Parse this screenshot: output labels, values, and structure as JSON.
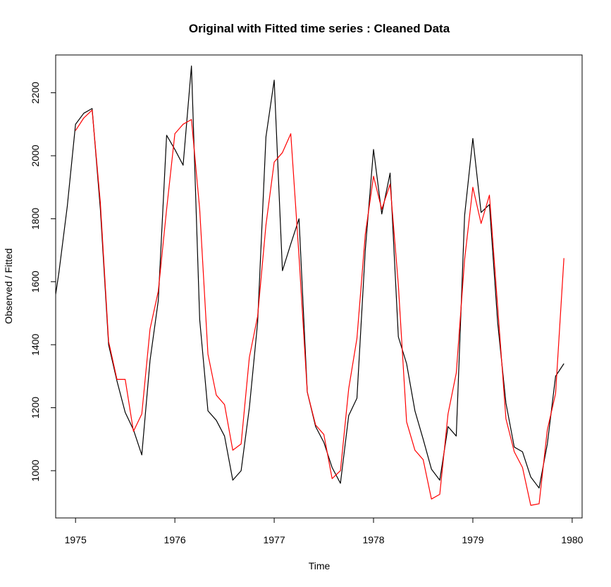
{
  "chart_data": {
    "type": "line",
    "title": "Original with Fitted time series : Cleaned Data",
    "xlabel": "Time",
    "ylabel": "Observed / Fitted",
    "xlim": [
      1974.8,
      1980.1
    ],
    "ylim": [
      850,
      2320
    ],
    "xticks": [
      1975,
      1976,
      1977,
      1978,
      1979,
      1980
    ],
    "yticks": [
      1000,
      1200,
      1400,
      1600,
      1800,
      2000,
      2200
    ],
    "grid": false,
    "legend": "none",
    "series": [
      {
        "color": "#000000",
        "x": [
          1974.8,
          1974.833,
          1974.917,
          1975.0,
          1975.083,
          1975.167,
          1975.25,
          1975.333,
          1975.417,
          1975.5,
          1975.583,
          1975.667,
          1975.75,
          1975.833,
          1975.917,
          1976.0,
          1976.083,
          1976.167,
          1976.25,
          1976.333,
          1976.417,
          1976.5,
          1976.583,
          1976.667,
          1976.75,
          1976.833,
          1976.917,
          1977.0,
          1977.083,
          1977.167,
          1977.25,
          1977.333,
          1977.417,
          1977.5,
          1977.583,
          1977.667,
          1977.75,
          1977.833,
          1977.917,
          1978.0,
          1978.083,
          1978.167,
          1978.25,
          1978.333,
          1978.417,
          1978.5,
          1978.583,
          1978.667,
          1978.75,
          1978.833,
          1978.917,
          1979.0,
          1979.083,
          1979.167,
          1979.25,
          1979.333,
          1979.417,
          1979.5,
          1979.583,
          1979.667,
          1979.75,
          1979.833,
          1979.917
        ],
        "values": [
          1560,
          1630,
          1840,
          2100,
          2135,
          2150,
          1830,
          1400,
          1285,
          1185,
          1130,
          1050,
          1350,
          1540,
          2065,
          2020,
          1970,
          2285,
          1480,
          1190,
          1160,
          1110,
          970,
          1000,
          1200,
          1470,
          2060,
          2240,
          1635,
          1720,
          1800,
          1250,
          1140,
          1090,
          1010,
          960,
          1175,
          1230,
          1700,
          2020,
          1815,
          1945,
          1425,
          1340,
          1190,
          1100,
          1005,
          970,
          1140,
          1110,
          1810,
          2055,
          1820,
          1845,
          1470,
          1215,
          1075,
          1060,
          980,
          945,
          1085,
          1300,
          1340
        ]
      },
      {
        "color": "#ff0000",
        "x": [
          1975.0,
          1975.083,
          1975.167,
          1975.25,
          1975.333,
          1975.417,
          1975.5,
          1975.583,
          1975.667,
          1975.75,
          1975.833,
          1975.917,
          1976.0,
          1976.083,
          1976.167,
          1976.25,
          1976.333,
          1976.417,
          1976.5,
          1976.583,
          1976.667,
          1976.75,
          1976.833,
          1976.917,
          1977.0,
          1977.083,
          1977.167,
          1977.25,
          1977.333,
          1977.417,
          1977.5,
          1977.583,
          1977.667,
          1977.75,
          1977.833,
          1977.917,
          1978.0,
          1978.083,
          1978.167,
          1978.25,
          1978.333,
          1978.417,
          1978.5,
          1978.583,
          1978.667,
          1978.75,
          1978.833,
          1978.917,
          1979.0,
          1979.083,
          1979.167,
          1979.25,
          1979.333,
          1979.417,
          1979.5,
          1979.583,
          1979.667,
          1979.75,
          1979.833,
          1979.917
        ],
        "values": [
          2080,
          2120,
          2145,
          1850,
          1410,
          1290,
          1290,
          1125,
          1180,
          1450,
          1570,
          1830,
          2070,
          2100,
          2115,
          1830,
          1370,
          1240,
          1210,
          1065,
          1085,
          1360,
          1490,
          1780,
          1980,
          2010,
          2070,
          1680,
          1250,
          1145,
          1115,
          975,
          1000,
          1260,
          1420,
          1750,
          1935,
          1830,
          1910,
          1590,
          1155,
          1065,
          1035,
          910,
          925,
          1180,
          1310,
          1670,
          1900,
          1785,
          1875,
          1520,
          1165,
          1060,
          1010,
          890,
          895,
          1130,
          1245,
          1675
        ]
      }
    ]
  }
}
